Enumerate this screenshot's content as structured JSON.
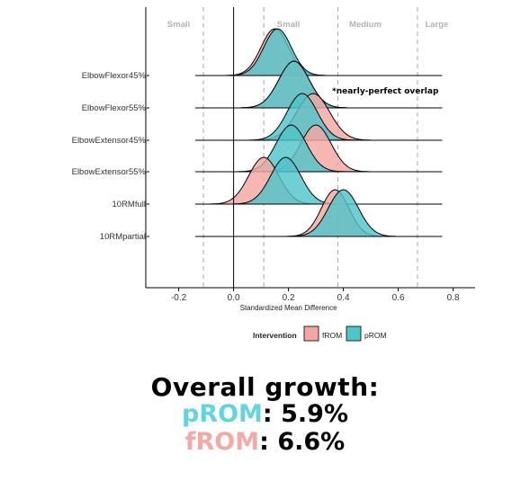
{
  "chart_data": {
    "type": "ridgeline",
    "xlabel": "Standardized Mean Difference",
    "xlim": [
      -0.32,
      0.88
    ],
    "xticks": [
      -0.2,
      0.0,
      0.2,
      0.4,
      0.6,
      0.8
    ],
    "xtick_labels": [
      "-0.2",
      "0.0",
      "0.2",
      "0.4",
      "0.6",
      "0.8"
    ],
    "baseline_from": -0.14,
    "baseline_to": 0.76,
    "reference_lines": [
      -0.11,
      0.11,
      0.38,
      0.67
    ],
    "zones": [
      {
        "label": "Small",
        "x": -0.2
      },
      {
        "label": "Small",
        "x": 0.2
      },
      {
        "label": "Medium",
        "x": 0.48
      },
      {
        "label": "Large",
        "x": 0.74
      }
    ],
    "categories": [
      "ElbowFlexor45%",
      "ElbowFlexor55%",
      "ElbowExtensor45%",
      "ElbowExtensor55%",
      "10RMfull",
      "10RMpartial"
    ],
    "series": [
      {
        "name": "fROM",
        "color": "#f4a7a2",
        "peaks": [
          0.15,
          0.22,
          0.29,
          0.3,
          0.11,
          0.37
        ],
        "sd": [
          0.05,
          0.055,
          0.06,
          0.055,
          0.055,
          0.05
        ]
      },
      {
        "name": "pROM",
        "color": "#4fc4c9",
        "peaks": [
          0.16,
          0.22,
          0.25,
          0.21,
          0.19,
          0.4
        ],
        "sd": [
          0.05,
          0.055,
          0.055,
          0.055,
          0.055,
          0.055
        ]
      }
    ],
    "legend": {
      "title": "Intervention",
      "placement": "bottom",
      "entries": [
        "fROM",
        "pROM"
      ]
    },
    "annotation": {
      "text": "*nearly-perfect overlap",
      "category": "ElbowFlexor55%"
    },
    "grid": false
  },
  "summary": {
    "headline": "Overall growth:",
    "prom_label": "pROM",
    "prom_value": ": 5.9%",
    "from_label": "fROM",
    "from_value": ": 6.6%"
  }
}
